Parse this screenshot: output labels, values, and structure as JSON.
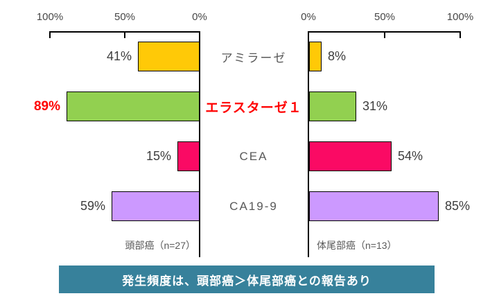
{
  "chart_data": {
    "type": "bar",
    "variant": "butterfly",
    "categories": [
      "アミラーゼ",
      "エラスターゼ１",
      "CEA",
      "CA19-9"
    ],
    "series": [
      {
        "name": "頭部癌（n=27）",
        "values": [
          41,
          89,
          15,
          59
        ]
      },
      {
        "name": "体尾部癌（n=13）",
        "values": [
          8,
          31,
          54,
          85
        ]
      }
    ],
    "bar_colors": [
      "#FFC907",
      "#92D050",
      "#FA0A64",
      "#CC99FF"
    ],
    "bar_border_color": "#000000",
    "value_suffix": "%",
    "highlight_category": "エラスターゼ１",
    "highlight_color": "#FF0000",
    "left_axis_ticks": [
      "100%",
      "50%",
      "0%"
    ],
    "right_axis_ticks": [
      "0%",
      "50%",
      "100%"
    ],
    "xlim": [
      0,
      100
    ],
    "grid": false,
    "legend": false,
    "title": ""
  },
  "panels": {
    "left_caption": "頭部癌（n=27）",
    "right_caption": "体尾部癌（n=13）"
  },
  "banner": {
    "text": "発生頻度は、頭部癌＞体尾部癌との報告あり",
    "background": "#37819B",
    "text_color": "#FFFFFF"
  }
}
